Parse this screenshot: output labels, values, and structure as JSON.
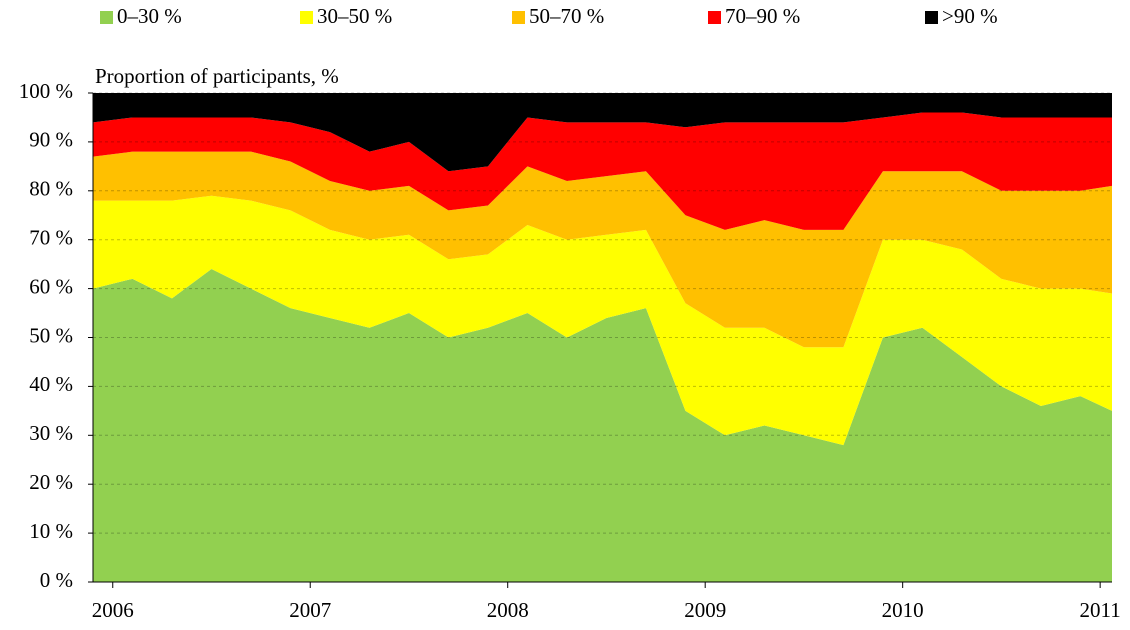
{
  "chart_data": {
    "type": "stacked-area",
    "y_label": "Proportion of participants, %",
    "x": [
      2005.9,
      2006.1,
      2006.3,
      2006.5,
      2006.7,
      2006.9,
      2007.1,
      2007.3,
      2007.5,
      2007.7,
      2007.9,
      2008.1,
      2008.3,
      2008.5,
      2008.7,
      2008.9,
      2009.1,
      2009.3,
      2009.5,
      2009.7,
      2009.9,
      2010.1,
      2010.3,
      2010.5,
      2010.7,
      2010.9,
      2011.06
    ],
    "series": [
      {
        "name": "0–30 %",
        "color": "#92d050",
        "values": [
          60,
          62,
          58,
          64,
          60,
          56,
          54,
          52,
          55,
          50,
          52,
          55,
          50,
          54,
          56,
          35,
          30,
          32,
          30,
          28,
          50,
          52,
          46,
          40,
          36,
          38,
          35
        ]
      },
      {
        "name": "30–50 %",
        "color": "#ffff00",
        "values": [
          18,
          16,
          20,
          15,
          18,
          20,
          18,
          18,
          16,
          16,
          15,
          18,
          20,
          17,
          16,
          22,
          22,
          20,
          18,
          20,
          20,
          18,
          22,
          22,
          24,
          22,
          24
        ]
      },
      {
        "name": "50–70 %",
        "color": "#ffc000",
        "values": [
          9,
          10,
          10,
          9,
          10,
          10,
          10,
          10,
          10,
          10,
          10,
          12,
          12,
          12,
          12,
          18,
          20,
          22,
          24,
          24,
          14,
          14,
          16,
          18,
          20,
          20,
          22
        ]
      },
      {
        "name": "70–90 %",
        "color": "#ff0000",
        "values": [
          7,
          7,
          7,
          7,
          7,
          8,
          10,
          8,
          9,
          8,
          8,
          10,
          12,
          11,
          10,
          18,
          22,
          20,
          22,
          22,
          11,
          12,
          12,
          15,
          15,
          15,
          14
        ]
      },
      {
        "name": ">90 %",
        "color": "#000000",
        "values": [
          6,
          5,
          5,
          5,
          5,
          6,
          8,
          12,
          10,
          16,
          15,
          5,
          6,
          6,
          6,
          7,
          6,
          6,
          6,
          6,
          5,
          4,
          4,
          5,
          5,
          5,
          5
        ]
      }
    ],
    "xlim": [
      2005.9,
      2011.06
    ],
    "xticks": [
      2006,
      2007,
      2008,
      2009,
      2010,
      2011
    ],
    "ylim": [
      0,
      100
    ],
    "yticks": [
      {
        "value": 0,
        "label": "0 %"
      },
      {
        "value": 10,
        "label": "10 %"
      },
      {
        "value": 20,
        "label": "20 %"
      },
      {
        "value": 30,
        "label": "30 %"
      },
      {
        "value": 40,
        "label": "40 %"
      },
      {
        "value": 50,
        "label": "50 %"
      },
      {
        "value": 60,
        "label": "60 %"
      },
      {
        "value": 70,
        "label": "70 %"
      },
      {
        "value": 80,
        "label": "80 %"
      },
      {
        "value": 90,
        "label": "90 %"
      },
      {
        "value": 100,
        "label": "100 %"
      }
    ],
    "grid": true,
    "legend": "top"
  }
}
